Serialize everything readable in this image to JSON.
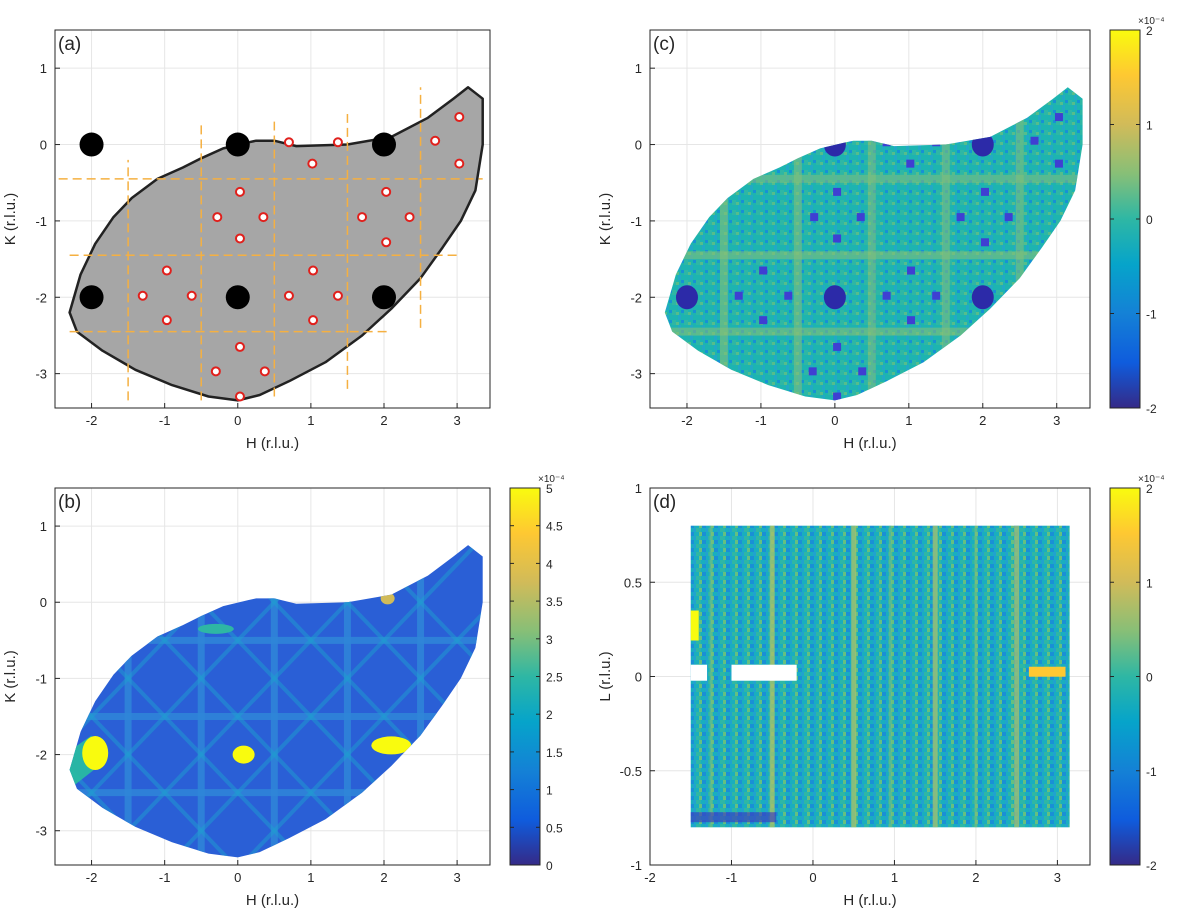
{
  "chart_data": [
    {
      "id": "a",
      "type": "scatter",
      "panel_label": "(a)",
      "xlabel": "H (r.l.u.)",
      "ylabel": "K (r.l.u.)",
      "xlim": [
        -2.5,
        3.45
      ],
      "ylim": [
        -3.45,
        1.5
      ],
      "xticks": [
        -2,
        -1,
        0,
        1,
        2,
        3
      ],
      "yticks": [
        1,
        0,
        -1,
        -2,
        -3
      ],
      "grid": true,
      "coverage_region": {
        "fill": "#a6a6a6",
        "outline": "#222222",
        "boundary": [
          [
            -2.3,
            -2.2
          ],
          [
            -2.15,
            -1.7
          ],
          [
            -1.95,
            -1.3
          ],
          [
            -1.7,
            -0.95
          ],
          [
            -1.45,
            -0.7
          ],
          [
            -1.1,
            -0.45
          ],
          [
            -0.75,
            -0.3
          ],
          [
            -0.5,
            -0.18
          ],
          [
            -0.2,
            -0.05
          ],
          [
            0.15,
            0.03
          ],
          [
            0.25,
            0.05
          ],
          [
            0.5,
            0.05
          ],
          [
            0.8,
            -0.02
          ],
          [
            1.5,
            0.0
          ],
          [
            2.1,
            0.1
          ],
          [
            2.6,
            0.35
          ],
          [
            2.95,
            0.6
          ],
          [
            3.15,
            0.75
          ],
          [
            3.35,
            0.6
          ],
          [
            3.35,
            0.0
          ],
          [
            3.25,
            -0.6
          ],
          [
            3.05,
            -1.0
          ],
          [
            2.8,
            -1.35
          ],
          [
            2.5,
            -1.75
          ],
          [
            2.1,
            -2.15
          ],
          [
            1.7,
            -2.5
          ],
          [
            1.2,
            -2.85
          ],
          [
            0.7,
            -3.1
          ],
          [
            0.3,
            -3.28
          ],
          [
            0.0,
            -3.35
          ],
          [
            -0.4,
            -3.3
          ],
          [
            -0.9,
            -3.15
          ],
          [
            -1.4,
            -2.95
          ],
          [
            -1.85,
            -2.7
          ],
          [
            -2.2,
            -2.45
          ]
        ]
      },
      "grid_lines": {
        "color": "#f5b041",
        "vertical": [
          {
            "x": -1.5,
            "y": [
              -3.35,
              -0.2
            ]
          },
          {
            "x": -0.5,
            "y": [
              -3.35,
              0.3
            ]
          },
          {
            "x": 0.5,
            "y": [
              -3.3,
              0.3
            ]
          },
          {
            "x": 1.5,
            "y": [
              -3.2,
              0.4
            ]
          },
          {
            "x": 2.5,
            "y": [
              -2.4,
              0.75
            ]
          }
        ],
        "horizontal": [
          {
            "y": -0.45,
            "x": [
              -2.45,
              3.35
            ]
          },
          {
            "y": -1.45,
            "x": [
              -2.3,
              3.0
            ]
          },
          {
            "y": -2.45,
            "x": [
              -2.3,
              2.1
            ]
          }
        ]
      },
      "series": [
        {
          "marker": "large-black-dot",
          "points": [
            [
              -2,
              0
            ],
            [
              0,
              0
            ],
            [
              2,
              0
            ],
            [
              -2,
              -2
            ],
            [
              0,
              -2
            ],
            [
              2,
              -2
            ]
          ]
        },
        {
          "marker": "red-ring",
          "points": [
            [
              0.7,
              0.03
            ],
            [
              1.37,
              0.03
            ],
            [
              3.03,
              0.36
            ],
            [
              2.7,
              0.05
            ],
            [
              3.03,
              -0.25
            ],
            [
              1.02,
              -0.25
            ],
            [
              0.03,
              -0.62
            ],
            [
              -0.28,
              -0.95
            ],
            [
              0.35,
              -0.95
            ],
            [
              0.03,
              -1.23
            ],
            [
              2.03,
              -0.62
            ],
            [
              1.7,
              -0.95
            ],
            [
              2.35,
              -0.95
            ],
            [
              2.03,
              -1.28
            ],
            [
              -0.97,
              -1.65
            ],
            [
              -1.3,
              -1.98
            ],
            [
              -0.63,
              -1.98
            ],
            [
              -0.97,
              -2.3
            ],
            [
              1.03,
              -1.65
            ],
            [
              0.7,
              -1.98
            ],
            [
              1.37,
              -1.98
            ],
            [
              1.03,
              -2.3
            ],
            [
              0.03,
              -2.65
            ],
            [
              -0.3,
              -2.97
            ],
            [
              0.37,
              -2.97
            ],
            [
              0.03,
              -3.3
            ]
          ]
        }
      ]
    },
    {
      "id": "b",
      "type": "heatmap",
      "panel_label": "(b)",
      "xlabel": "H (r.l.u.)",
      "ylabel": "K (r.l.u.)",
      "xlim": [
        -2.5,
        3.45
      ],
      "ylim": [
        -3.45,
        1.5
      ],
      "xticks": [
        -2,
        -1,
        0,
        1,
        2,
        3
      ],
      "yticks": [
        1,
        0,
        -1,
        -2,
        -3
      ],
      "grid": true,
      "colorbar": {
        "min": 0,
        "max": 5,
        "ticks": [
          "5",
          "4.5",
          "4",
          "3.5",
          "3",
          "2.5",
          "2",
          "1.5",
          "1",
          "0.5",
          "0"
        ],
        "exponent": "×10⁻⁴"
      },
      "features": "bright yellow spots at (H,K) = (-2,-2), (0,-2), (2,-2); lighter lattice lines at half-integer positions"
    },
    {
      "id": "c",
      "type": "heatmap",
      "panel_label": "(c)",
      "xlabel": "H (r.l.u.)",
      "ylabel": "K (r.l.u.)",
      "xlim": [
        -2.5,
        3.45
      ],
      "ylim": [
        -3.45,
        1.5
      ],
      "xticks": [
        -2,
        -1,
        0,
        1,
        2,
        3
      ],
      "yticks": [
        1,
        0,
        -1,
        -2,
        -3
      ],
      "grid": true,
      "colorbar": {
        "min": -2,
        "max": 2,
        "ticks": [
          "2",
          "1",
          "0",
          "-1",
          "-2"
        ],
        "exponent": "×10⁻⁴"
      },
      "features": "dark blue spots at integer and small Bragg positions; yellow-green lattice lines"
    },
    {
      "id": "d",
      "type": "heatmap",
      "panel_label": "(d)",
      "xlabel": "H (r.l.u.)",
      "ylabel": "L (r.l.u.)",
      "xlim": [
        -2,
        3.4
      ],
      "ylim": [
        -1,
        1
      ],
      "xticks": [
        -2,
        -1,
        0,
        1,
        2,
        3
      ],
      "yticks": [
        1,
        0.5,
        0,
        -0.5,
        -1
      ],
      "grid": true,
      "colorbar": {
        "min": -2,
        "max": 2,
        "ticks": [
          "2",
          "1",
          "0",
          "-1",
          "-2"
        ],
        "exponent": "×10⁻⁴"
      },
      "data_extent": {
        "h": [
          -1.5,
          3.15
        ],
        "l": [
          -0.8,
          0.8
        ]
      },
      "features": "vertical streaks near H = -0.5, 0.5, 1.5, 2.5; white gap at L = 0 for H between -1.0 and -0.2"
    }
  ]
}
